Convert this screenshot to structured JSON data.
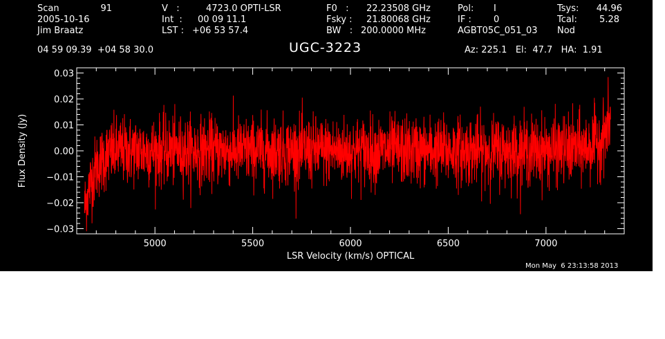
{
  "header": {
    "scan_label": "Scan",
    "scan_value": "91",
    "date": "2005-10-16",
    "observer": "Jim Braatz",
    "coords": "04 59 09.39  +04 58 30.0",
    "v_label": "V   :",
    "v_value": "4723.0 OPTI-LSR",
    "int_label": "Int  :",
    "int_value": "00 09 11.1",
    "lst_label": "LST :",
    "lst_value": "+06 53 57.4",
    "f0_label": "F0   :",
    "f0_value": "22.23508 GHz",
    "fsky_label": "Fsky :",
    "fsky_value": "21.80068 GHz",
    "bw_label": "BW   :",
    "bw_value": "200.0000 MHz",
    "pol_label": "Pol:",
    "pol_value": "I",
    "if_label": "IF :",
    "if_value": "0",
    "session": "AGBT05C_051_03",
    "tsys_label": "Tsys:",
    "tsys_value": "44.96",
    "tcal_label": "Tcal:",
    "tcal_value": "5.28",
    "procedure": "Nod",
    "az_el_ha": "Az: 225.1   El:  47.7   HA:  1.91",
    "source": "UGC-3223",
    "timestamp": "Mon May  6 23:13:58 2013"
  },
  "chart_data": {
    "type": "line",
    "title": "UGC-3223",
    "xlabel": "LSR Velocity (km/s) OPTICAL",
    "ylabel": "Flux Density (Jy)",
    "xlim": [
      4600,
      7400
    ],
    "ylim": [
      -0.032,
      0.032
    ],
    "x_ticks": [
      5000,
      5500,
      6000,
      6500,
      7000
    ],
    "y_ticks": [
      -0.03,
      -0.02,
      -0.01,
      0.0,
      0.01,
      0.02,
      0.03
    ],
    "y_tick_labels": [
      "−0.03",
      "−0.02",
      "−0.01",
      "0.00",
      "0.01",
      "0.02",
      "0.03"
    ],
    "grid": false,
    "series": [
      {
        "color": "#ff0000",
        "x_range": [
          4640,
          7330
        ],
        "profile": {
          "x": [
            4640,
            4660,
            4700,
            4750,
            4800,
            5000,
            5500,
            6000,
            6500,
            7000,
            7200,
            7280,
            7310,
            7330
          ],
          "y": [
            -0.022,
            -0.015,
            -0.006,
            -0.002,
            0.0,
            0.0,
            0.0,
            0.0,
            0.0,
            0.0,
            0.001,
            0.004,
            0.008,
            0.012
          ]
        },
        "noise_rms": 0.0065
      }
    ],
    "colors": {
      "background": "#000000",
      "axes": "#ffffff",
      "trace": "#ff0000"
    }
  }
}
